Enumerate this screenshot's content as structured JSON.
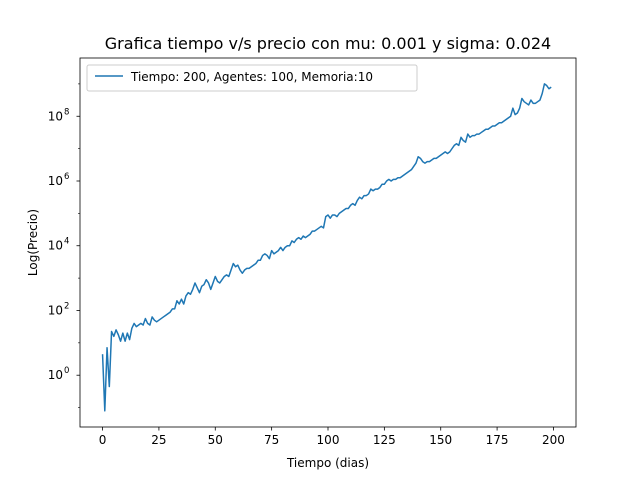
{
  "chart_data": {
    "type": "line",
    "title": "Grafica tiempo v/s precio con mu: 0.001 y sigma: 0.024",
    "xlabel": "Tiempo (dias)",
    "ylabel": "Log(Precio)",
    "yscale": "log",
    "xlim": [
      -10,
      210
    ],
    "ylim_log10": [
      -1.6,
      9.8
    ],
    "xticks": [
      0,
      25,
      50,
      75,
      100,
      125,
      150,
      175,
      200
    ],
    "xtick_labels": [
      "0",
      "25",
      "50",
      "75",
      "100",
      "125",
      "150",
      "175",
      "200"
    ],
    "ytick_exponents": [
      0,
      2,
      4,
      6,
      8
    ],
    "ytick_base": "10",
    "grid": false,
    "legend_position": "top-left",
    "series": [
      {
        "name": "Tiempo: 200, Agentes: 100, Memoria:10",
        "color": "#1f77b4",
        "x": [
          0,
          1,
          2,
          3,
          4,
          5,
          6,
          7,
          8,
          9,
          10,
          11,
          12,
          13,
          14,
          15,
          16,
          17,
          18,
          19,
          20,
          21,
          22,
          23,
          24,
          25,
          26,
          27,
          28,
          29,
          30,
          31,
          32,
          33,
          34,
          35,
          36,
          37,
          38,
          39,
          40,
          41,
          42,
          43,
          44,
          45,
          46,
          47,
          48,
          49,
          50,
          51,
          52,
          53,
          54,
          55,
          56,
          57,
          58,
          59,
          60,
          61,
          62,
          63,
          64,
          65,
          66,
          67,
          68,
          69,
          70,
          71,
          72,
          73,
          74,
          75,
          76,
          77,
          78,
          79,
          80,
          81,
          82,
          83,
          84,
          85,
          86,
          87,
          88,
          89,
          90,
          91,
          92,
          93,
          94,
          95,
          96,
          97,
          98,
          99,
          100,
          101,
          102,
          103,
          104,
          105,
          106,
          107,
          108,
          109,
          110,
          111,
          112,
          113,
          114,
          115,
          116,
          117,
          118,
          119,
          120,
          121,
          122,
          123,
          124,
          125,
          126,
          127,
          128,
          129,
          130,
          131,
          132,
          133,
          134,
          135,
          136,
          137,
          138,
          139,
          140,
          141,
          142,
          143,
          144,
          145,
          146,
          147,
          148,
          149,
          150,
          151,
          152,
          153,
          154,
          155,
          156,
          157,
          158,
          159,
          160,
          161,
          162,
          163,
          164,
          165,
          166,
          167,
          168,
          169,
          170,
          171,
          172,
          173,
          174,
          175,
          176,
          177,
          178,
          179,
          180,
          181,
          182,
          183,
          184,
          185,
          186,
          187,
          188,
          189,
          190,
          191,
          192,
          193,
          194,
          195,
          196,
          197,
          198,
          199
        ],
        "log10_y": [
          0.65,
          -1.1,
          0.85,
          -0.35,
          1.35,
          1.2,
          1.4,
          1.25,
          1.05,
          1.3,
          1.05,
          1.3,
          1.1,
          1.45,
          1.6,
          1.5,
          1.55,
          1.6,
          1.55,
          1.75,
          1.6,
          1.55,
          1.8,
          1.7,
          1.65,
          1.7,
          1.75,
          1.8,
          1.85,
          1.9,
          1.95,
          2.05,
          2.05,
          2.3,
          2.2,
          2.35,
          2.2,
          2.45,
          2.55,
          2.5,
          2.65,
          2.85,
          2.7,
          2.55,
          2.75,
          2.8,
          2.95,
          2.85,
          2.65,
          2.85,
          3.05,
          2.9,
          2.85,
          2.95,
          3.05,
          3.1,
          3.05,
          3.25,
          3.45,
          3.35,
          3.4,
          3.25,
          3.15,
          3.25,
          3.3,
          3.3,
          3.35,
          3.4,
          3.45,
          3.55,
          3.55,
          3.7,
          3.75,
          3.7,
          3.6,
          3.85,
          3.75,
          3.8,
          3.85,
          3.95,
          3.85,
          3.95,
          4.0,
          4.0,
          4.15,
          4.1,
          4.2,
          4.25,
          4.2,
          4.3,
          4.25,
          4.3,
          4.35,
          4.45,
          4.45,
          4.5,
          4.55,
          4.6,
          4.55,
          4.9,
          4.95,
          4.85,
          4.95,
          4.95,
          4.9,
          5.0,
          5.05,
          5.1,
          5.15,
          5.15,
          5.25,
          5.3,
          5.25,
          5.4,
          5.5,
          5.45,
          5.55,
          5.55,
          5.6,
          5.75,
          5.7,
          5.75,
          5.75,
          5.8,
          5.9,
          5.9,
          6.0,
          6.05,
          6.0,
          6.05,
          6.05,
          6.1,
          6.1,
          6.15,
          6.2,
          6.25,
          6.3,
          6.35,
          6.45,
          6.55,
          6.75,
          6.7,
          6.6,
          6.55,
          6.6,
          6.6,
          6.65,
          6.7,
          6.7,
          6.75,
          6.8,
          6.85,
          6.9,
          6.85,
          6.9,
          7.0,
          7.1,
          7.15,
          7.1,
          7.35,
          7.25,
          7.2,
          7.45,
          7.35,
          7.4,
          7.4,
          7.45,
          7.45,
          7.5,
          7.55,
          7.6,
          7.6,
          7.65,
          7.7,
          7.7,
          7.75,
          7.8,
          7.8,
          7.85,
          7.9,
          7.95,
          8.0,
          8.25,
          8.05,
          8.1,
          8.25,
          8.55,
          8.45,
          8.4,
          8.35,
          8.5,
          8.4,
          8.4,
          8.45,
          8.5,
          8.7,
          9.0,
          8.95,
          8.85,
          8.9,
          8.85,
          8.9,
          8.85,
          8.95
        ]
      }
    ]
  }
}
